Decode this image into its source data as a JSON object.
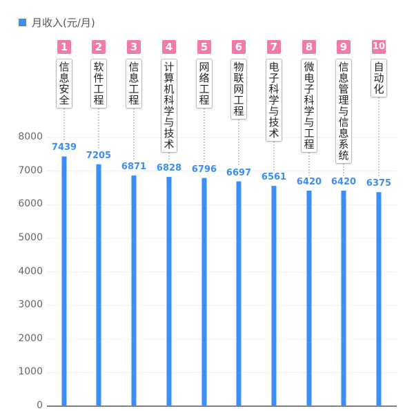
{
  "chart_data": {
    "type": "bar",
    "legend": "月收入(元/月)",
    "legend_position": "top-left",
    "categories": [
      "信息安全",
      "软件工程",
      "信息工程",
      "计算机科学与技术",
      "网络工程",
      "物联网工程",
      "电子科学与技术",
      "微电子科学与工程",
      "信息管理与信息系统",
      "自动化"
    ],
    "ranks": [
      "1",
      "2",
      "3",
      "4",
      "5",
      "6",
      "7",
      "8",
      "9",
      "10"
    ],
    "values": [
      7439,
      7205,
      6871,
      6828,
      6796,
      6697,
      6561,
      6420,
      6420,
      6375
    ],
    "value_labels": [
      "7439",
      "7205",
      "6871",
      "6828",
      "6796",
      "6697",
      "6561",
      "6420",
      "6420",
      "6375"
    ],
    "yticks": [
      "0",
      "1000",
      "2000",
      "3000",
      "4000",
      "5000",
      "6000",
      "7000",
      "8000"
    ],
    "ylim": [
      0,
      8000
    ],
    "grid": true,
    "bar_color": "#3a8ef6",
    "badge_color": "#f27aa8"
  }
}
